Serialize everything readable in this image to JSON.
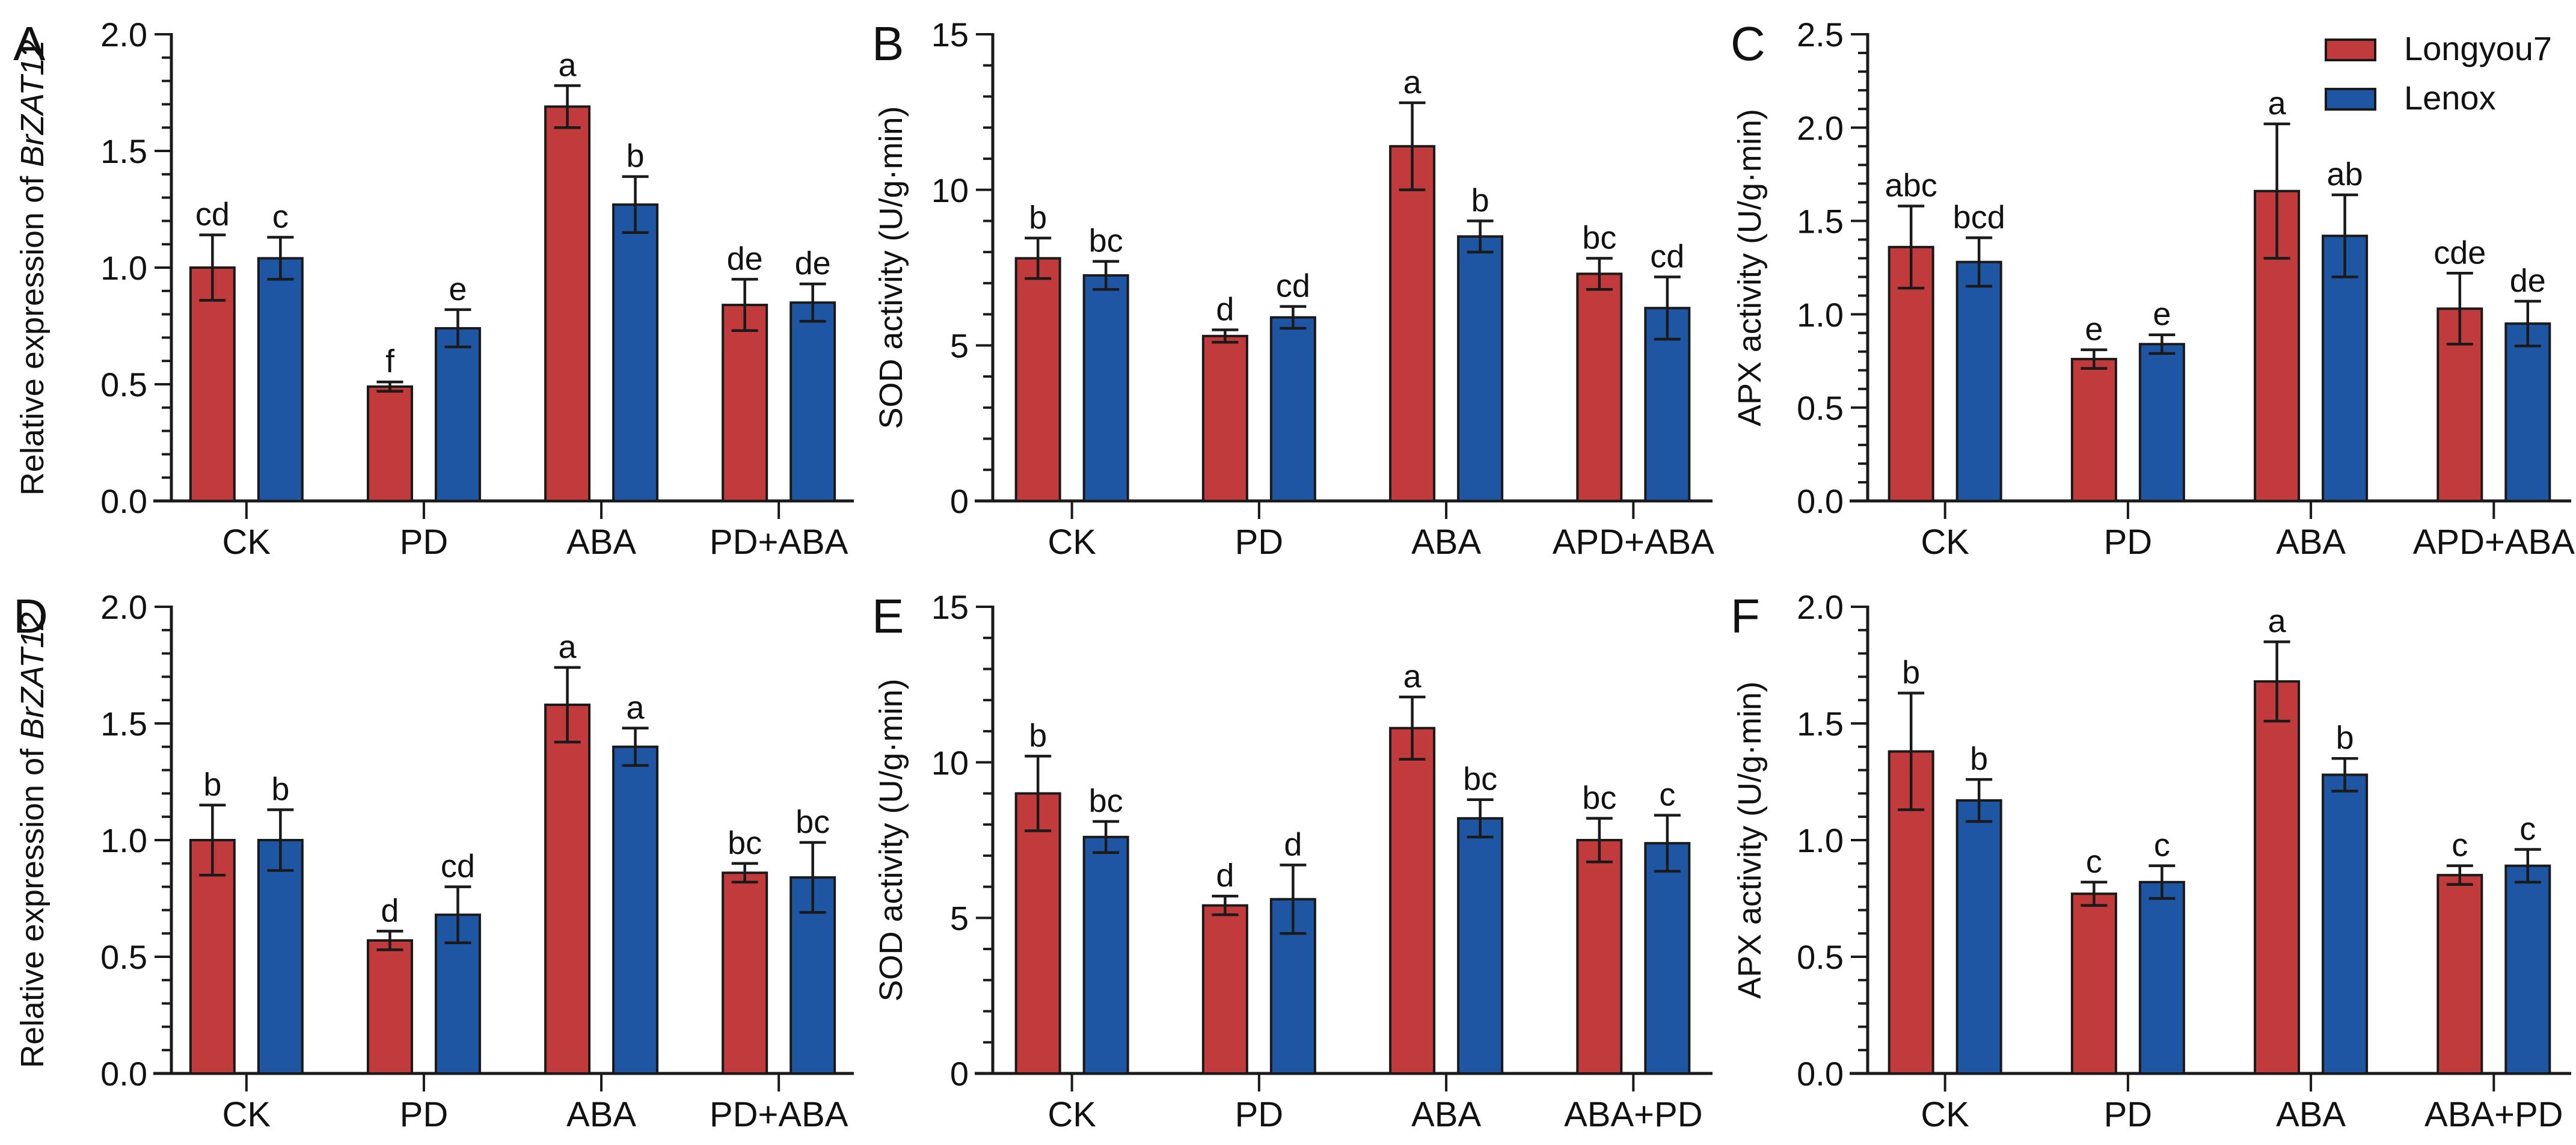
{
  "figure": {
    "legend": {
      "items": [
        {
          "label": "Longyou7",
          "color": "#c23b3c"
        },
        {
          "label": "Lenox",
          "color": "#1e56a3"
        }
      ]
    }
  },
  "chart_data": [
    {
      "panel_letter": "A",
      "type": "bar",
      "ylabel_prefix": "Relative expression of ",
      "ylabel_italic": "BrZAT12",
      "ylabel": "",
      "ylim": [
        0,
        2.0
      ],
      "yticks": [
        0,
        0.5,
        1.0,
        1.5,
        2.0
      ],
      "ytick_labels": [
        "0.0",
        "0.5",
        "1.0",
        "1.5",
        "2.0"
      ],
      "minor_step": 0.1,
      "grid": false,
      "legend_position": "none",
      "show_legend": false,
      "categories": [
        "CK",
        "PD",
        "ABA",
        "PD+ABA"
      ],
      "series": [
        {
          "name": "Longyou7",
          "color": "#c23b3c",
          "values": [
            1.0,
            0.49,
            1.69,
            0.84
          ],
          "errors": [
            0.14,
            0.02,
            0.09,
            0.11
          ],
          "letters": [
            "cd",
            "f",
            "a",
            "de"
          ]
        },
        {
          "name": "Lenox",
          "color": "#1e56a3",
          "values": [
            1.04,
            0.74,
            1.27,
            0.85
          ],
          "errors": [
            0.09,
            0.08,
            0.12,
            0.08
          ],
          "letters": [
            "c",
            "e",
            "b",
            "de"
          ]
        }
      ]
    },
    {
      "panel_letter": "B",
      "type": "bar",
      "ylabel_prefix": "",
      "ylabel_italic": "",
      "ylabel": "SOD activity (U/g·min)",
      "ylim": [
        0,
        15
      ],
      "yticks": [
        0,
        5,
        10,
        15
      ],
      "ytick_labels": [
        "0",
        "5",
        "10",
        "15"
      ],
      "minor_step": 1,
      "grid": false,
      "legend_position": "none",
      "show_legend": false,
      "categories": [
        "CK",
        "PD",
        "ABA",
        "APD+ABA"
      ],
      "series": [
        {
          "name": "Longyou7",
          "color": "#c23b3c",
          "values": [
            7.8,
            5.3,
            11.4,
            7.3
          ],
          "errors": [
            0.65,
            0.2,
            1.4,
            0.5
          ],
          "letters": [
            "b",
            "d",
            "a",
            "bc"
          ]
        },
        {
          "name": "Lenox",
          "color": "#1e56a3",
          "values": [
            7.25,
            5.9,
            8.5,
            6.2
          ],
          "errors": [
            0.45,
            0.35,
            0.5,
            1.0
          ],
          "letters": [
            "bc",
            "cd",
            "b",
            "cd"
          ]
        }
      ]
    },
    {
      "panel_letter": "C",
      "type": "bar",
      "ylabel_prefix": "",
      "ylabel_italic": "",
      "ylabel": "APX activity (U/g·min)",
      "ylim": [
        0,
        2.5
      ],
      "yticks": [
        0,
        0.5,
        1.0,
        1.5,
        2.0,
        2.5
      ],
      "ytick_labels": [
        "0.0",
        "0.5",
        "1.0",
        "1.5",
        "2.0",
        "2.5"
      ],
      "minor_step": 0.1,
      "grid": false,
      "legend_position": "top-right",
      "show_legend": true,
      "categories": [
        "CK",
        "PD",
        "ABA",
        "APD+ABA"
      ],
      "series": [
        {
          "name": "Longyou7",
          "color": "#c23b3c",
          "values": [
            1.36,
            0.76,
            1.66,
            1.03
          ],
          "errors": [
            0.22,
            0.05,
            0.36,
            0.19
          ],
          "letters": [
            "abc",
            "e",
            "a",
            "cde"
          ]
        },
        {
          "name": "Lenox",
          "color": "#1e56a3",
          "values": [
            1.28,
            0.84,
            1.42,
            0.95
          ],
          "errors": [
            0.13,
            0.05,
            0.22,
            0.12
          ],
          "letters": [
            "bcd",
            "e",
            "ab",
            "de"
          ]
        }
      ]
    },
    {
      "panel_letter": "D",
      "type": "bar",
      "ylabel_prefix": "Relative expression of ",
      "ylabel_italic": "BrZAT12",
      "ylabel": "",
      "ylim": [
        0,
        2.0
      ],
      "yticks": [
        0,
        0.5,
        1.0,
        1.5,
        2.0
      ],
      "ytick_labels": [
        "0.0",
        "0.5",
        "1.0",
        "1.5",
        "2.0"
      ],
      "minor_step": 0.1,
      "grid": false,
      "legend_position": "none",
      "show_legend": false,
      "categories": [
        "CK",
        "PD",
        "ABA",
        "PD+ABA"
      ],
      "series": [
        {
          "name": "Longyou7",
          "color": "#c23b3c",
          "values": [
            1.0,
            0.57,
            1.58,
            0.86
          ],
          "errors": [
            0.15,
            0.04,
            0.16,
            0.04
          ],
          "letters": [
            "b",
            "d",
            "a",
            "bc"
          ]
        },
        {
          "name": "Lenox",
          "color": "#1e56a3",
          "values": [
            1.0,
            0.68,
            1.4,
            0.84
          ],
          "errors": [
            0.13,
            0.12,
            0.08,
            0.15
          ],
          "letters": [
            "b",
            "cd",
            "a",
            "bc"
          ]
        }
      ]
    },
    {
      "panel_letter": "E",
      "type": "bar",
      "ylabel_prefix": "",
      "ylabel_italic": "",
      "ylabel": "SOD activity (U/g·min)",
      "ylim": [
        0,
        15
      ],
      "yticks": [
        0,
        5,
        10,
        15
      ],
      "ytick_labels": [
        "0",
        "5",
        "10",
        "15"
      ],
      "minor_step": 1,
      "grid": false,
      "legend_position": "none",
      "show_legend": false,
      "categories": [
        "CK",
        "PD",
        "ABA",
        "ABA+PD"
      ],
      "series": [
        {
          "name": "Longyou7",
          "color": "#c23b3c",
          "values": [
            9.0,
            5.4,
            11.1,
            7.5
          ],
          "errors": [
            1.2,
            0.3,
            1.0,
            0.7
          ],
          "letters": [
            "b",
            "d",
            "a",
            "bc"
          ]
        },
        {
          "name": "Lenox",
          "color": "#1e56a3",
          "values": [
            7.6,
            5.6,
            8.2,
            7.4
          ],
          "errors": [
            0.5,
            1.1,
            0.6,
            0.9
          ],
          "letters": [
            "bc",
            "d",
            "bc",
            "c"
          ]
        }
      ]
    },
    {
      "panel_letter": "F",
      "type": "bar",
      "ylabel_prefix": "",
      "ylabel_italic": "",
      "ylabel": "APX activity (U/g·min)",
      "ylim": [
        0,
        2.0
      ],
      "yticks": [
        0,
        0.5,
        1.0,
        1.5,
        2.0
      ],
      "ytick_labels": [
        "0.0",
        "0.5",
        "1.0",
        "1.5",
        "2.0"
      ],
      "minor_step": 0.1,
      "grid": false,
      "legend_position": "none",
      "show_legend": false,
      "categories": [
        "CK",
        "PD",
        "ABA",
        "ABA+PD"
      ],
      "series": [
        {
          "name": "Longyou7",
          "color": "#c23b3c",
          "values": [
            1.38,
            0.77,
            1.68,
            0.85
          ],
          "errors": [
            0.25,
            0.05,
            0.17,
            0.04
          ],
          "letters": [
            "b",
            "c",
            "a",
            "c"
          ]
        },
        {
          "name": "Lenox",
          "color": "#1e56a3",
          "values": [
            1.17,
            0.82,
            1.28,
            0.89
          ],
          "errors": [
            0.09,
            0.07,
            0.07,
            0.07
          ],
          "letters": [
            "b",
            "c",
            "b",
            "c"
          ]
        }
      ]
    }
  ]
}
